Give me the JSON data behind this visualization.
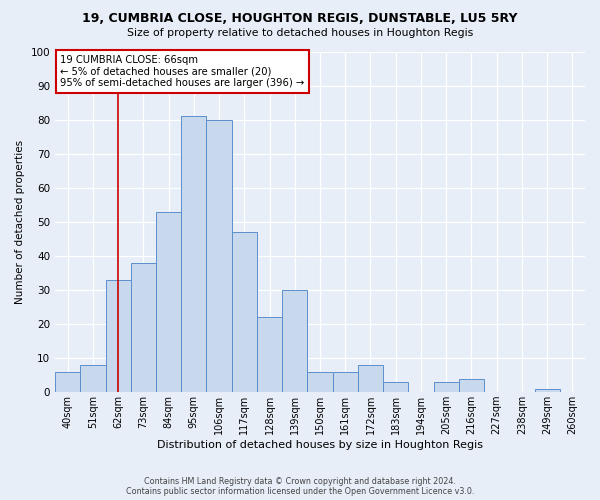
{
  "title": "19, CUMBRIA CLOSE, HOUGHTON REGIS, DUNSTABLE, LU5 5RY",
  "subtitle": "Size of property relative to detached houses in Houghton Regis",
  "xlabel": "Distribution of detached houses by size in Houghton Regis",
  "ylabel": "Number of detached properties",
  "bar_labels": [
    "40sqm",
    "51sqm",
    "62sqm",
    "73sqm",
    "84sqm",
    "95sqm",
    "106sqm",
    "117sqm",
    "128sqm",
    "139sqm",
    "150sqm",
    "161sqm",
    "172sqm",
    "183sqm",
    "194sqm",
    "205sqm",
    "216sqm",
    "227sqm",
    "238sqm",
    "249sqm",
    "260sqm"
  ],
  "bar_values": [
    6,
    8,
    33,
    38,
    53,
    81,
    80,
    47,
    22,
    30,
    6,
    6,
    8,
    3,
    0,
    3,
    4,
    0,
    0,
    1,
    0
  ],
  "bar_color": "#c8d9ee",
  "bar_edge_color": "#5b8fcc",
  "ylim": [
    0,
    100
  ],
  "yticks": [
    0,
    10,
    20,
    30,
    40,
    50,
    60,
    70,
    80,
    90,
    100
  ],
  "vline_x": 2,
  "vline_color": "#cc0000",
  "annotation_title": "19 CUMBRIA CLOSE: 66sqm",
  "annotation_line1": "← 5% of detached houses are smaller (20)",
  "annotation_line2": "95% of semi-detached houses are larger (396) →",
  "annotation_box_color": "#ffffff",
  "annotation_box_edge": "#cc0000",
  "footer1": "Contains HM Land Registry data © Crown copyright and database right 2024.",
  "footer2": "Contains public sector information licensed under the Open Government Licence v3.0.",
  "bg_color": "#e8eef8",
  "plot_bg_color": "#e8eef8",
  "grid_color": "#ffffff"
}
